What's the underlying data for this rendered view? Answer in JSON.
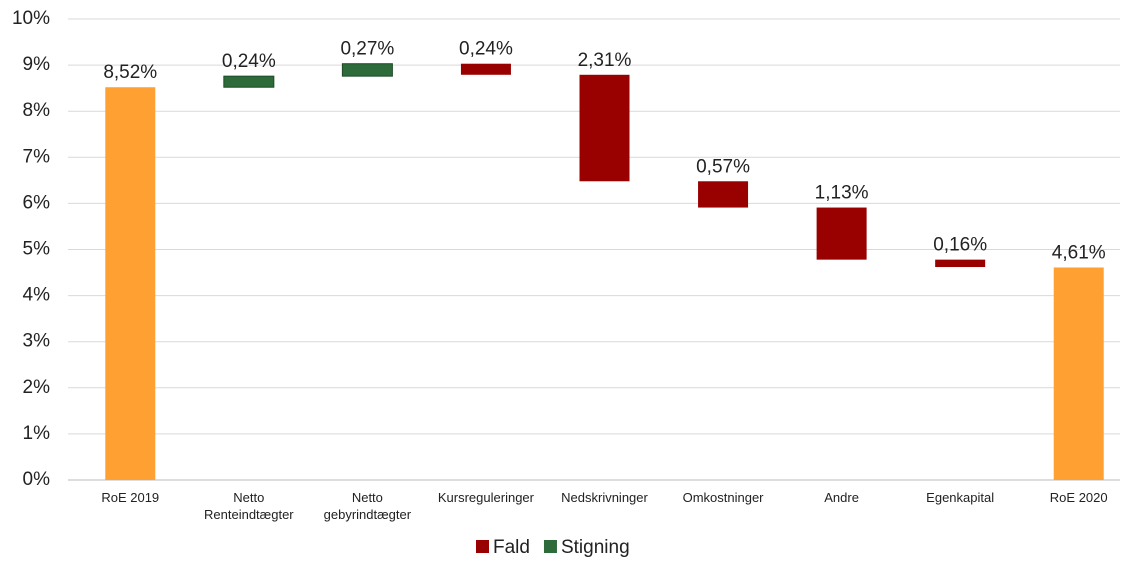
{
  "chart_data": {
    "type": "waterfall",
    "categories": [
      "RoE 2019",
      "Netto Renteindtægter",
      "Netto gebyrindtægter",
      "Kursreguleringer",
      "Nedskrivninger",
      "Omkostninger",
      "Andre",
      "Egenkapital",
      "RoE 2020"
    ],
    "values": [
      8.52,
      0.24,
      0.27,
      -0.24,
      -2.31,
      -0.57,
      -1.13,
      -0.16,
      4.61
    ],
    "value_labels": [
      "8,52%",
      "0,24%",
      "0,27%",
      "0,24%",
      "2,31%",
      "0,57%",
      "1,13%",
      "0,16%",
      "4,61%"
    ],
    "total_color": "#ffa033",
    "legend": [
      {
        "name": "Fald",
        "color": "#990000"
      },
      {
        "name": "Stigning",
        "color": "#2e6b3a"
      }
    ],
    "ylim": [
      0,
      10
    ],
    "yticks": [
      {
        "value": 0,
        "label": "0%"
      },
      {
        "value": 1,
        "label": "1%"
      },
      {
        "value": 2,
        "label": "2%"
      },
      {
        "value": 3,
        "label": "3%"
      },
      {
        "value": 4,
        "label": "4%"
      },
      {
        "value": 5,
        "label": "5%"
      },
      {
        "value": 6,
        "label": "6%"
      },
      {
        "value": 7,
        "label": "7%"
      },
      {
        "value": 8,
        "label": "8%"
      },
      {
        "value": 9,
        "label": "9%"
      },
      {
        "value": 10,
        "label": "10%"
      }
    ],
    "grid": true
  }
}
